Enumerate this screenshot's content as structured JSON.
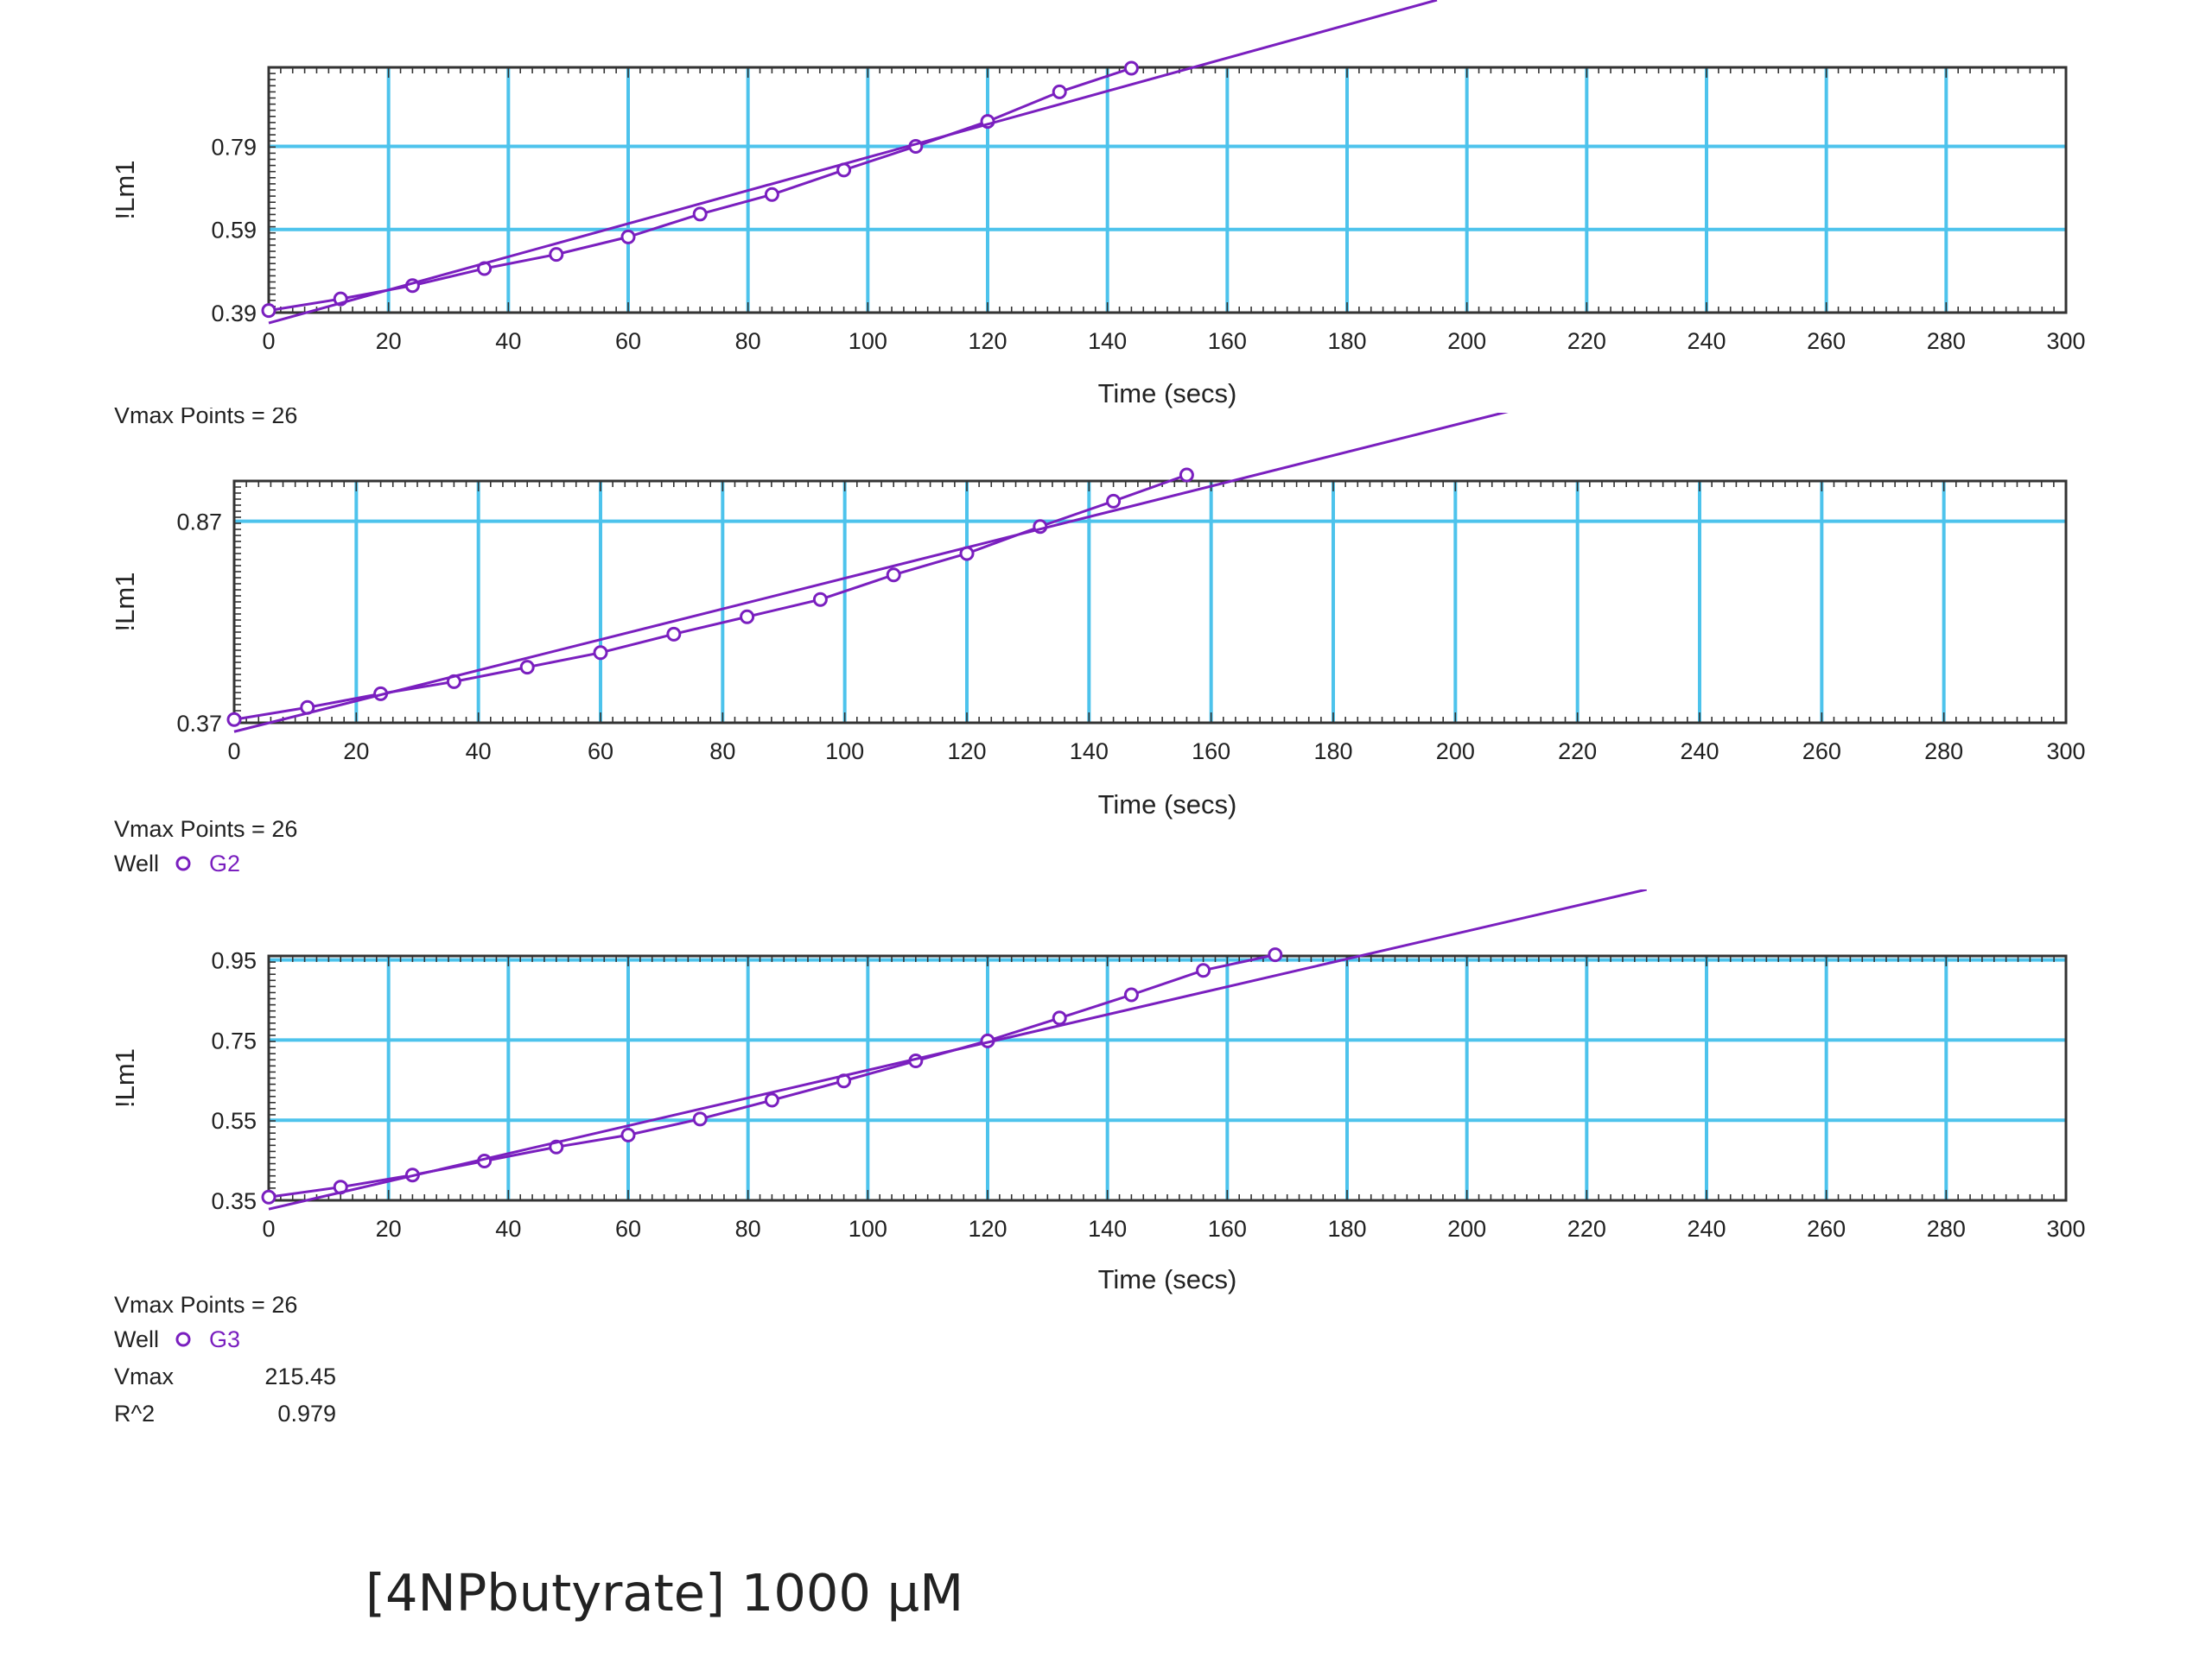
{
  "caption": "[4NPbutyrate] 1000 µM",
  "colors": {
    "grid": "#4dc3ec",
    "data": "#7a1fbf",
    "frame": "#333333",
    "text": "#222222"
  },
  "chart_data": [
    {
      "type": "line",
      "xlabel": "Time (secs)",
      "ylabel": "!Lm1",
      "xlim": [
        0,
        300
      ],
      "ylim": [
        0.39,
        0.98
      ],
      "x_ticks": [
        0,
        20,
        40,
        60,
        80,
        100,
        120,
        140,
        160,
        180,
        200,
        220,
        240,
        260,
        280,
        300
      ],
      "y_ticks": [
        0.39,
        0.59,
        0.79
      ],
      "grid": true,
      "series": [
        {
          "kind": "markers",
          "x": [
            0,
            12,
            24,
            36,
            48,
            60,
            72,
            84,
            96,
            108,
            120,
            132,
            144
          ],
          "y": [
            0.395,
            0.423,
            0.455,
            0.496,
            0.53,
            0.572,
            0.627,
            0.674,
            0.733,
            0.79,
            0.85,
            0.921,
            0.978
          ]
        },
        {
          "kind": "fit",
          "x": [
            0,
            195
          ],
          "y": [
            0.365,
            1.142
          ]
        }
      ],
      "info": {
        "vmax_points_label": "Vmax Points = 26"
      }
    },
    {
      "type": "line",
      "xlabel": "Time (secs)",
      "ylabel": "!Lm1",
      "xlim": [
        0,
        300
      ],
      "ylim": [
        0.37,
        0.97
      ],
      "x_ticks": [
        0,
        20,
        40,
        60,
        80,
        100,
        120,
        140,
        160,
        180,
        200,
        220,
        240,
        260,
        280,
        300
      ],
      "y_ticks": [
        0.37,
        0.87
      ],
      "grid": true,
      "series": [
        {
          "kind": "markers",
          "x": [
            0,
            12,
            24,
            36,
            48,
            60,
            72,
            84,
            96,
            108,
            120,
            132,
            144,
            156
          ],
          "y": [
            0.378,
            0.408,
            0.442,
            0.472,
            0.508,
            0.544,
            0.59,
            0.633,
            0.676,
            0.737,
            0.79,
            0.857,
            0.92,
            0.985
          ]
        },
        {
          "kind": "fit",
          "x": [
            0,
            213
          ],
          "y": [
            0.348,
            1.159
          ]
        }
      ],
      "info": {
        "vmax_points_label": "Vmax Points = 26",
        "well_label": "Well",
        "well_name": "G2"
      }
    },
    {
      "type": "line",
      "xlabel": "Time (secs)",
      "ylabel": "!Lm1",
      "xlim": [
        0,
        300
      ],
      "ylim": [
        0.35,
        0.96
      ],
      "x_ticks": [
        0,
        20,
        40,
        60,
        80,
        100,
        120,
        140,
        160,
        180,
        200,
        220,
        240,
        260,
        280,
        300
      ],
      "y_ticks": [
        0.35,
        0.55,
        0.75,
        0.95
      ],
      "grid": true,
      "series": [
        {
          "kind": "markers",
          "x": [
            0,
            12,
            24,
            36,
            48,
            60,
            72,
            84,
            96,
            108,
            120,
            132,
            144,
            156,
            168
          ],
          "y": [
            0.358,
            0.383,
            0.413,
            0.448,
            0.483,
            0.513,
            0.553,
            0.6,
            0.648,
            0.698,
            0.748,
            0.805,
            0.863,
            0.924,
            0.963
          ]
        },
        {
          "kind": "fit",
          "x": [
            0,
            230
          ],
          "y": [
            0.328,
            1.126
          ]
        }
      ],
      "info": {
        "vmax_points_label": "Vmax Points = 26",
        "well_label": "Well",
        "well_name": "G3",
        "vmax_label": "Vmax",
        "vmax_value": "215.45",
        "r2_label": "R^2",
        "r2_value": "0.979"
      }
    }
  ]
}
